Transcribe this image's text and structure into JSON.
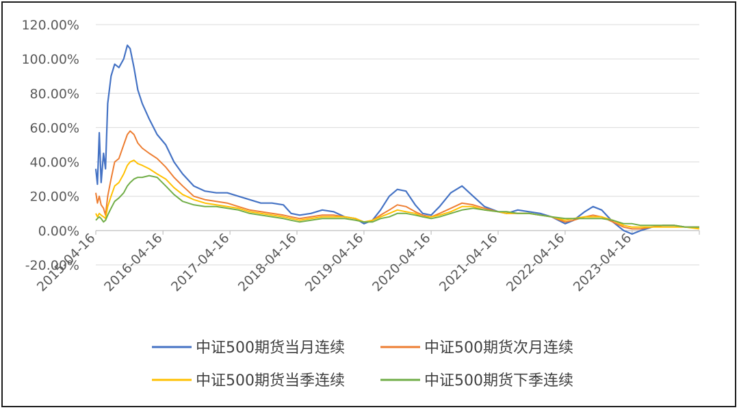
{
  "chart_data": {
    "type": "line",
    "title": "",
    "xlabel": "",
    "ylabel": "",
    "y_ticks": [
      "-20.00%",
      "0.00%",
      "20.00%",
      "40.00%",
      "60.00%",
      "80.00%",
      "100.00%",
      "120.00%"
    ],
    "ylim": [
      -20,
      120
    ],
    "y_unit": "%",
    "x_ticks": [
      "2015-04-16",
      "2016-04-16",
      "2017-04-16",
      "2018-04-16",
      "2019-04-16",
      "2020-04-16",
      "2021-04-16",
      "2022-04-16",
      "2023-04-16"
    ],
    "xlim": [
      "2015-04-16",
      "2024-04-16"
    ],
    "grid": "horizontal",
    "legend_position": "bottom",
    "series": [
      {
        "name": "中证500期货当月连续",
        "color": "#4472C4",
        "points": [
          [
            "2015-04-16",
            36
          ],
          [
            "2015-04-25",
            27
          ],
          [
            "2015-05-05",
            57
          ],
          [
            "2015-05-15",
            28
          ],
          [
            "2015-05-28",
            45
          ],
          [
            "2015-06-08",
            36
          ],
          [
            "2015-06-20",
            74
          ],
          [
            "2015-07-08",
            90
          ],
          [
            "2015-07-28",
            97
          ],
          [
            "2015-08-20",
            95
          ],
          [
            "2015-09-15",
            100
          ],
          [
            "2015-10-05",
            108
          ],
          [
            "2015-10-20",
            106
          ],
          [
            "2015-11-10",
            95
          ],
          [
            "2015-12-01",
            82
          ],
          [
            "2015-12-25",
            74
          ],
          [
            "2016-02-01",
            65
          ],
          [
            "2016-03-15",
            56
          ],
          [
            "2016-05-01",
            50
          ],
          [
            "2016-06-15",
            40
          ],
          [
            "2016-08-01",
            33
          ],
          [
            "2016-10-01",
            26
          ],
          [
            "2016-12-01",
            23
          ],
          [
            "2017-02-01",
            22
          ],
          [
            "2017-04-01",
            22
          ],
          [
            "2017-06-01",
            20
          ],
          [
            "2017-08-01",
            18
          ],
          [
            "2017-10-01",
            16
          ],
          [
            "2017-12-01",
            16
          ],
          [
            "2018-02-01",
            15
          ],
          [
            "2018-03-15",
            10
          ],
          [
            "2018-05-01",
            9
          ],
          [
            "2018-07-01",
            10
          ],
          [
            "2018-09-01",
            12
          ],
          [
            "2018-11-01",
            11
          ],
          [
            "2019-01-01",
            8
          ],
          [
            "2019-03-01",
            7
          ],
          [
            "2019-04-16",
            4
          ],
          [
            "2019-06-01",
            6
          ],
          [
            "2019-07-15",
            12
          ],
          [
            "2019-09-01",
            20
          ],
          [
            "2019-10-15",
            24
          ],
          [
            "2019-12-01",
            23
          ],
          [
            "2020-01-20",
            15
          ],
          [
            "2020-03-01",
            10
          ],
          [
            "2020-04-16",
            9
          ],
          [
            "2020-06-01",
            14
          ],
          [
            "2020-08-01",
            22
          ],
          [
            "2020-10-01",
            26
          ],
          [
            "2020-12-01",
            20
          ],
          [
            "2021-02-01",
            14
          ],
          [
            "2021-04-16",
            11
          ],
          [
            "2021-06-01",
            10
          ],
          [
            "2021-08-01",
            12
          ],
          [
            "2021-10-01",
            11
          ],
          [
            "2021-12-01",
            10
          ],
          [
            "2022-02-01",
            8
          ],
          [
            "2022-04-16",
            4
          ],
          [
            "2022-06-01",
            6
          ],
          [
            "2022-08-01",
            11
          ],
          [
            "2022-09-15",
            14
          ],
          [
            "2022-11-01",
            12
          ],
          [
            "2023-01-01",
            5
          ],
          [
            "2023-03-01",
            0
          ],
          [
            "2023-04-16",
            -2
          ],
          [
            "2023-06-01",
            0
          ],
          [
            "2023-08-01",
            2
          ],
          [
            "2023-10-01",
            3
          ],
          [
            "2023-12-01",
            3
          ],
          [
            "2024-02-01",
            2
          ],
          [
            "2024-04-16",
            2
          ]
        ]
      },
      {
        "name": "中证500期货次月连续",
        "color": "#ED7D31",
        "points": [
          [
            "2015-04-16",
            22
          ],
          [
            "2015-04-25",
            16
          ],
          [
            "2015-05-05",
            20
          ],
          [
            "2015-05-15",
            15
          ],
          [
            "2015-05-28",
            13
          ],
          [
            "2015-06-08",
            9
          ],
          [
            "2015-06-20",
            20
          ],
          [
            "2015-07-08",
            30
          ],
          [
            "2015-07-28",
            40
          ],
          [
            "2015-08-20",
            42
          ],
          [
            "2015-09-15",
            50
          ],
          [
            "2015-10-05",
            56
          ],
          [
            "2015-10-20",
            58
          ],
          [
            "2015-11-10",
            56
          ],
          [
            "2015-12-01",
            51
          ],
          [
            "2015-12-25",
            48
          ],
          [
            "2016-02-01",
            45
          ],
          [
            "2016-03-15",
            42
          ],
          [
            "2016-05-01",
            37
          ],
          [
            "2016-06-15",
            31
          ],
          [
            "2016-08-01",
            26
          ],
          [
            "2016-10-01",
            20
          ],
          [
            "2016-12-01",
            18
          ],
          [
            "2017-02-01",
            17
          ],
          [
            "2017-04-01",
            16
          ],
          [
            "2017-06-01",
            14
          ],
          [
            "2017-08-01",
            12
          ],
          [
            "2017-10-01",
            11
          ],
          [
            "2017-12-01",
            10
          ],
          [
            "2018-02-01",
            9
          ],
          [
            "2018-03-15",
            8
          ],
          [
            "2018-05-01",
            7
          ],
          [
            "2018-07-01",
            8
          ],
          [
            "2018-09-01",
            9
          ],
          [
            "2018-11-01",
            9
          ],
          [
            "2019-01-01",
            8
          ],
          [
            "2019-03-01",
            7
          ],
          [
            "2019-04-16",
            5
          ],
          [
            "2019-06-01",
            6
          ],
          [
            "2019-07-15",
            9
          ],
          [
            "2019-09-01",
            12
          ],
          [
            "2019-10-15",
            15
          ],
          [
            "2019-12-01",
            14
          ],
          [
            "2020-01-20",
            11
          ],
          [
            "2020-03-01",
            9
          ],
          [
            "2020-04-16",
            8
          ],
          [
            "2020-06-01",
            10
          ],
          [
            "2020-08-01",
            13
          ],
          [
            "2020-10-01",
            16
          ],
          [
            "2020-12-01",
            15
          ],
          [
            "2021-02-01",
            13
          ],
          [
            "2021-04-16",
            11
          ],
          [
            "2021-06-01",
            10
          ],
          [
            "2021-08-01",
            10
          ],
          [
            "2021-10-01",
            10
          ],
          [
            "2021-12-01",
            9
          ],
          [
            "2022-02-01",
            8
          ],
          [
            "2022-04-16",
            5
          ],
          [
            "2022-06-01",
            6
          ],
          [
            "2022-08-01",
            8
          ],
          [
            "2022-09-15",
            9
          ],
          [
            "2022-11-01",
            8
          ],
          [
            "2023-01-01",
            5
          ],
          [
            "2023-03-01",
            2
          ],
          [
            "2023-04-16",
            1
          ],
          [
            "2023-06-01",
            1
          ],
          [
            "2023-08-01",
            2
          ],
          [
            "2023-10-01",
            3
          ],
          [
            "2023-12-01",
            3
          ],
          [
            "2024-02-01",
            2
          ],
          [
            "2024-04-16",
            2
          ]
        ]
      },
      {
        "name": "中证500期货当季连续",
        "color": "#FFC000",
        "points": [
          [
            "2015-04-16",
            10
          ],
          [
            "2015-04-25",
            8
          ],
          [
            "2015-05-05",
            10
          ],
          [
            "2015-05-15",
            9
          ],
          [
            "2015-05-28",
            8
          ],
          [
            "2015-06-08",
            7
          ],
          [
            "2015-06-20",
            14
          ],
          [
            "2015-07-08",
            20
          ],
          [
            "2015-07-28",
            26
          ],
          [
            "2015-08-20",
            28
          ],
          [
            "2015-09-15",
            33
          ],
          [
            "2015-10-05",
            38
          ],
          [
            "2015-10-20",
            40
          ],
          [
            "2015-11-10",
            41
          ],
          [
            "2015-12-01",
            39
          ],
          [
            "2015-12-25",
            38
          ],
          [
            "2016-02-01",
            36
          ],
          [
            "2016-03-15",
            33
          ],
          [
            "2016-05-01",
            30
          ],
          [
            "2016-06-15",
            25
          ],
          [
            "2016-08-01",
            21
          ],
          [
            "2016-10-01",
            18
          ],
          [
            "2016-12-01",
            16
          ],
          [
            "2017-02-01",
            15
          ],
          [
            "2017-04-01",
            14
          ],
          [
            "2017-06-01",
            13
          ],
          [
            "2017-08-01",
            11
          ],
          [
            "2017-10-01",
            10
          ],
          [
            "2017-12-01",
            9
          ],
          [
            "2018-02-01",
            8
          ],
          [
            "2018-03-15",
            7
          ],
          [
            "2018-05-01",
            6
          ],
          [
            "2018-07-01",
            7
          ],
          [
            "2018-09-01",
            8
          ],
          [
            "2018-11-01",
            8
          ],
          [
            "2019-01-01",
            8
          ],
          [
            "2019-03-01",
            7
          ],
          [
            "2019-04-16",
            5
          ],
          [
            "2019-06-01",
            6
          ],
          [
            "2019-07-15",
            8
          ],
          [
            "2019-09-01",
            10
          ],
          [
            "2019-10-15",
            12
          ],
          [
            "2019-12-01",
            11
          ],
          [
            "2020-01-20",
            10
          ],
          [
            "2020-03-01",
            8
          ],
          [
            "2020-04-16",
            8
          ],
          [
            "2020-06-01",
            9
          ],
          [
            "2020-08-01",
            11
          ],
          [
            "2020-10-01",
            14
          ],
          [
            "2020-12-01",
            14
          ],
          [
            "2021-02-01",
            12
          ],
          [
            "2021-04-16",
            11
          ],
          [
            "2021-06-01",
            10
          ],
          [
            "2021-08-01",
            10
          ],
          [
            "2021-10-01",
            10
          ],
          [
            "2021-12-01",
            9
          ],
          [
            "2022-02-01",
            8
          ],
          [
            "2022-04-16",
            6
          ],
          [
            "2022-06-01",
            7
          ],
          [
            "2022-08-01",
            8
          ],
          [
            "2022-09-15",
            8
          ],
          [
            "2022-11-01",
            8
          ],
          [
            "2023-01-01",
            6
          ],
          [
            "2023-03-01",
            3
          ],
          [
            "2023-04-16",
            2
          ],
          [
            "2023-06-01",
            2
          ],
          [
            "2023-08-01",
            2
          ],
          [
            "2023-10-01",
            2
          ],
          [
            "2023-12-01",
            2
          ],
          [
            "2024-02-01",
            2
          ],
          [
            "2024-04-16",
            1
          ]
        ]
      },
      {
        "name": "中证500期货下季连续",
        "color": "#70AD47",
        "points": [
          [
            "2015-04-16",
            6
          ],
          [
            "2015-04-25",
            7
          ],
          [
            "2015-05-05",
            8
          ],
          [
            "2015-05-15",
            7
          ],
          [
            "2015-05-28",
            5
          ],
          [
            "2015-06-08",
            6
          ],
          [
            "2015-06-20",
            9
          ],
          [
            "2015-07-08",
            13
          ],
          [
            "2015-07-28",
            17
          ],
          [
            "2015-08-20",
            19
          ],
          [
            "2015-09-15",
            22
          ],
          [
            "2015-10-05",
            26
          ],
          [
            "2015-10-20",
            28
          ],
          [
            "2015-11-10",
            30
          ],
          [
            "2015-12-01",
            31
          ],
          [
            "2015-12-25",
            31
          ],
          [
            "2016-02-01",
            32
          ],
          [
            "2016-03-15",
            31
          ],
          [
            "2016-05-01",
            26
          ],
          [
            "2016-06-15",
            21
          ],
          [
            "2016-08-01",
            17
          ],
          [
            "2016-10-01",
            15
          ],
          [
            "2016-12-01",
            14
          ],
          [
            "2017-02-01",
            14
          ],
          [
            "2017-04-01",
            13
          ],
          [
            "2017-06-01",
            12
          ],
          [
            "2017-08-01",
            10
          ],
          [
            "2017-10-01",
            9
          ],
          [
            "2017-12-01",
            8
          ],
          [
            "2018-02-01",
            7
          ],
          [
            "2018-03-15",
            6
          ],
          [
            "2018-05-01",
            5
          ],
          [
            "2018-07-01",
            6
          ],
          [
            "2018-09-01",
            7
          ],
          [
            "2018-11-01",
            7
          ],
          [
            "2019-01-01",
            7
          ],
          [
            "2019-03-01",
            6
          ],
          [
            "2019-04-16",
            5
          ],
          [
            "2019-06-01",
            5
          ],
          [
            "2019-07-15",
            7
          ],
          [
            "2019-09-01",
            8
          ],
          [
            "2019-10-15",
            10
          ],
          [
            "2019-12-01",
            10
          ],
          [
            "2020-01-20",
            9
          ],
          [
            "2020-03-01",
            8
          ],
          [
            "2020-04-16",
            7
          ],
          [
            "2020-06-01",
            8
          ],
          [
            "2020-08-01",
            10
          ],
          [
            "2020-10-01",
            12
          ],
          [
            "2020-12-01",
            13
          ],
          [
            "2021-02-01",
            12
          ],
          [
            "2021-04-16",
            11
          ],
          [
            "2021-06-01",
            11
          ],
          [
            "2021-08-01",
            10
          ],
          [
            "2021-10-01",
            10
          ],
          [
            "2021-12-01",
            9
          ],
          [
            "2022-02-01",
            8
          ],
          [
            "2022-04-16",
            7
          ],
          [
            "2022-06-01",
            7
          ],
          [
            "2022-08-01",
            7
          ],
          [
            "2022-09-15",
            7
          ],
          [
            "2022-11-01",
            7
          ],
          [
            "2023-01-01",
            6
          ],
          [
            "2023-03-01",
            4
          ],
          [
            "2023-04-16",
            4
          ],
          [
            "2023-06-01",
            3
          ],
          [
            "2023-08-01",
            3
          ],
          [
            "2023-10-01",
            3
          ],
          [
            "2023-12-01",
            3
          ],
          [
            "2024-02-01",
            2
          ],
          [
            "2024-04-16",
            2
          ]
        ]
      }
    ]
  }
}
